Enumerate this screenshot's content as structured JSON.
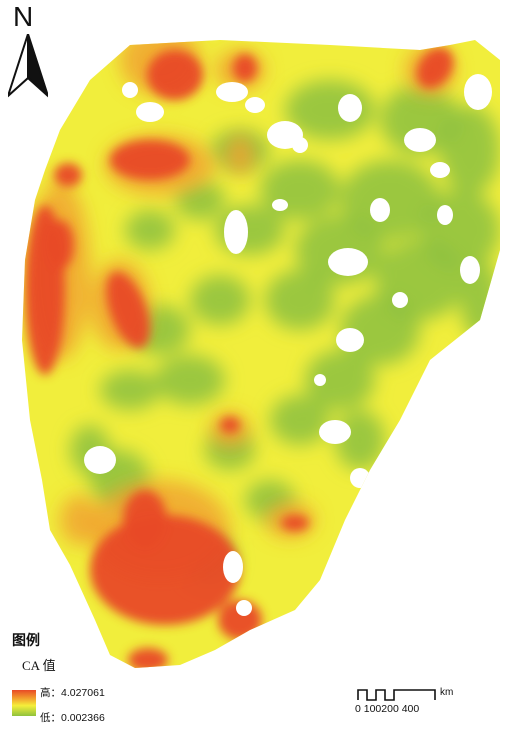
{
  "north": {
    "label": "N"
  },
  "legend": {
    "title": "图例",
    "field": "CA 值",
    "high_label": "高：4.027061",
    "low_label": "低：0.002366",
    "high_color": "#e84a26",
    "mid_color": "#f5ef3a",
    "low_color": "#8fc23d"
  },
  "scale": {
    "unit": "km",
    "ticks": "0 100200     400"
  },
  "map": {
    "background_color": "#f1ee3c",
    "hotspot_color": "#e84a26",
    "lowspot_color": "#8cc13f"
  }
}
